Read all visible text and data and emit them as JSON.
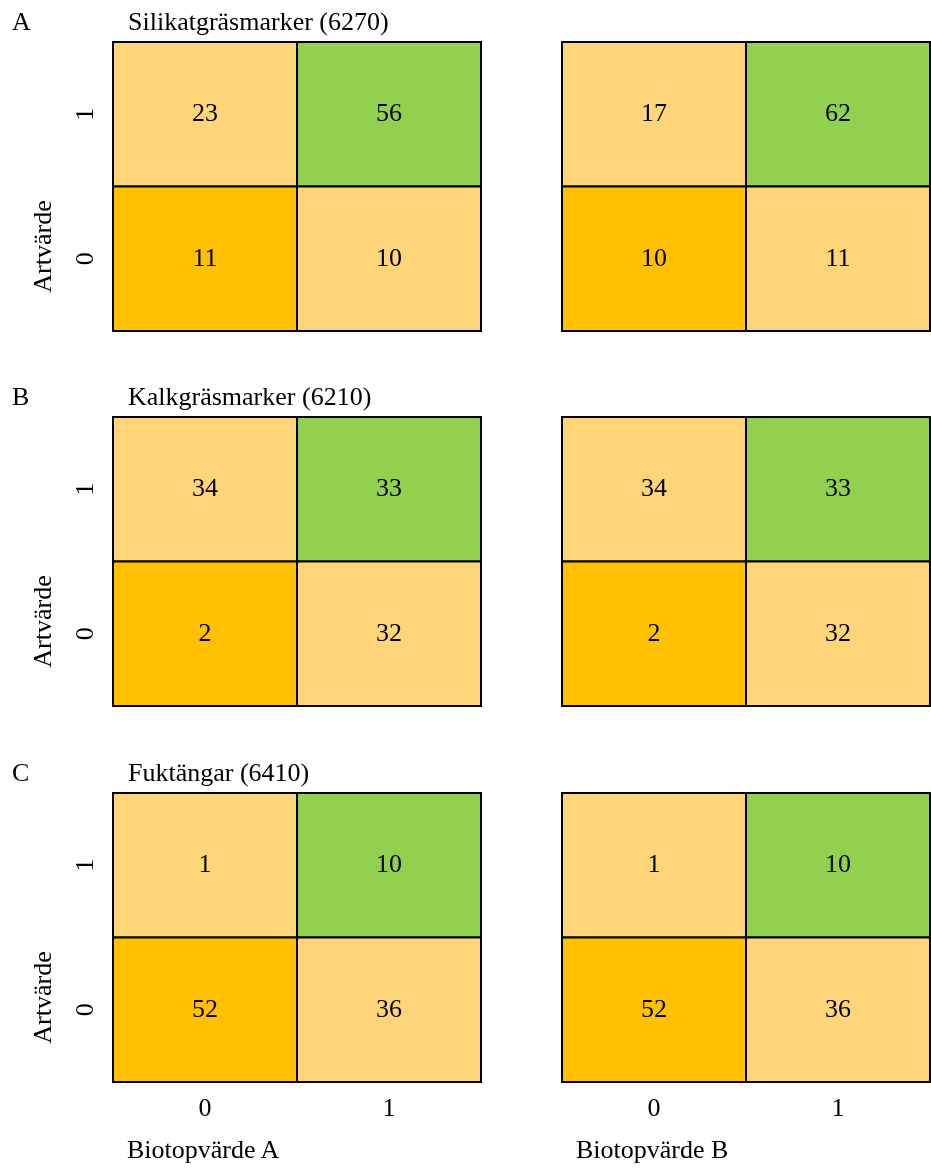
{
  "chart_data": [
    {
      "type": "heatmap",
      "title": "Silikatgräsmarker (6270)",
      "annotations": [
        "A"
      ],
      "ylabel": "Artvärde",
      "categories": [
        "0",
        "1"
      ],
      "y_categories": [
        "1",
        "0"
      ],
      "cells": [
        [
          23,
          56
        ],
        [
          11,
          10
        ]
      ],
      "colors": [
        [
          "#ffd579",
          "#92d050"
        ],
        [
          "#ffc000",
          "#ffd579"
        ]
      ],
      "data_labels": true,
      "tick_labels": "y"
    },
    {
      "type": "heatmap",
      "categories": [
        "0",
        "1"
      ],
      "y_categories": [
        "1",
        "0"
      ],
      "cells": [
        [
          17,
          62
        ],
        [
          10,
          11
        ]
      ],
      "colors": [
        [
          "#ffd579",
          "#92d050"
        ],
        [
          "#ffc000",
          "#ffd579"
        ]
      ],
      "data_labels": true,
      "tick_labels": false
    },
    {
      "type": "heatmap",
      "title": "Kalkgräsmarker (6210)",
      "annotations": [
        "B"
      ],
      "ylabel": "Artvärde",
      "categories": [
        "0",
        "1"
      ],
      "y_categories": [
        "1",
        "0"
      ],
      "cells": [
        [
          34,
          33
        ],
        [
          2,
          32
        ]
      ],
      "colors": [
        [
          "#ffd579",
          "#92d050"
        ],
        [
          "#ffc000",
          "#ffd579"
        ]
      ],
      "data_labels": true,
      "tick_labels": "y"
    },
    {
      "type": "heatmap",
      "categories": [
        "0",
        "1"
      ],
      "y_categories": [
        "1",
        "0"
      ],
      "cells": [
        [
          34,
          33
        ],
        [
          2,
          32
        ]
      ],
      "colors": [
        [
          "#ffd579",
          "#92d050"
        ],
        [
          "#ffc000",
          "#ffd579"
        ]
      ],
      "data_labels": true,
      "tick_labels": false
    },
    {
      "type": "heatmap",
      "title": "Fuktängar (6410)",
      "annotations": [
        "C"
      ],
      "ylabel": "Artvärde",
      "xlabel": "Biotopvärde A",
      "categories": [
        "0",
        "1"
      ],
      "y_categories": [
        "1",
        "0"
      ],
      "cells": [
        [
          1,
          10
        ],
        [
          52,
          36
        ]
      ],
      "colors": [
        [
          "#ffd579",
          "#92d050"
        ],
        [
          "#ffc000",
          "#ffd579"
        ]
      ],
      "data_labels": true
    },
    {
      "type": "heatmap",
      "xlabel": "Biotopvärde B",
      "categories": [
        "0",
        "1"
      ],
      "y_categories": [
        "1",
        "0"
      ],
      "cells": [
        [
          1,
          10
        ],
        [
          52,
          36
        ]
      ],
      "colors": [
        [
          "#ffd579",
          "#92d050"
        ],
        [
          "#ffc000",
          "#ffd579"
        ]
      ],
      "data_labels": true,
      "tick_labels": "x"
    }
  ]
}
